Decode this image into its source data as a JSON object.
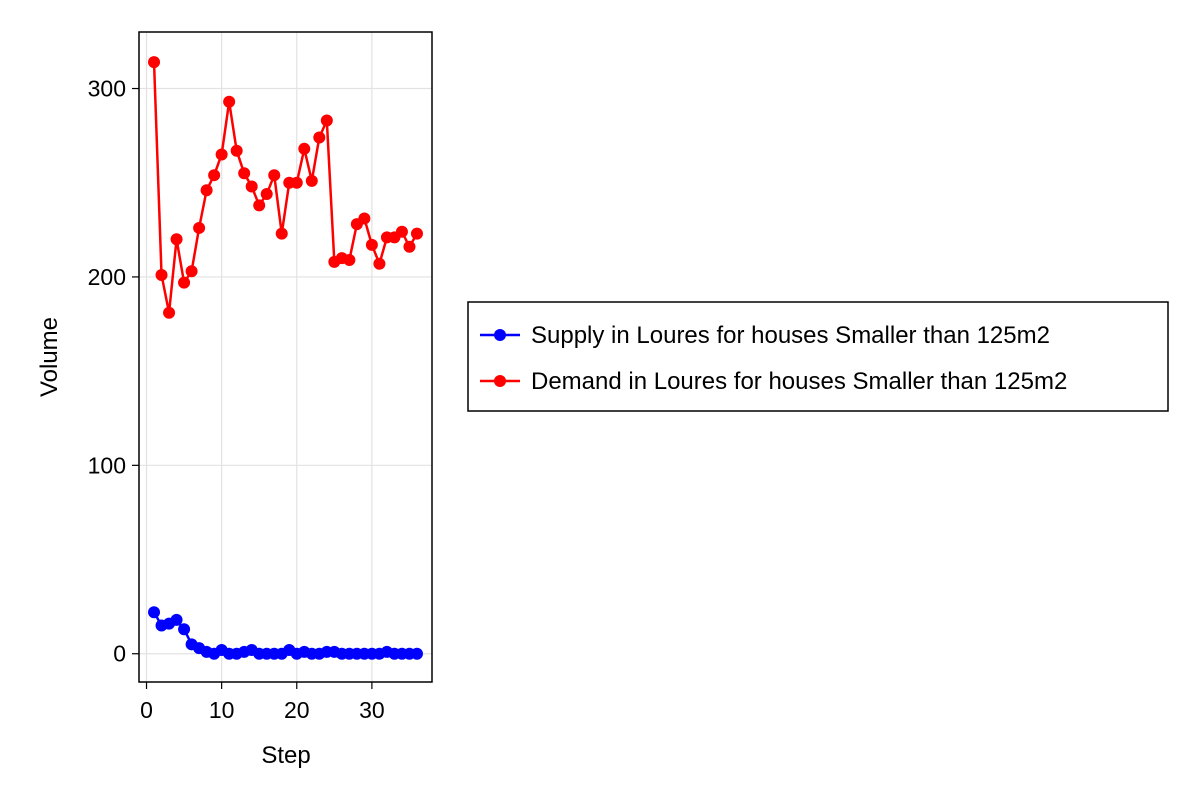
{
  "chart_data": {
    "type": "line",
    "xlabel": "Step",
    "ylabel": "Volume",
    "xlim": [
      -1,
      38
    ],
    "ylim": [
      -15,
      330
    ],
    "xticks": [
      0,
      10,
      20,
      30
    ],
    "yticks": [
      0,
      100,
      200,
      300
    ],
    "grid": true,
    "legend_position": "right",
    "x": [
      1,
      2,
      3,
      4,
      5,
      6,
      7,
      8,
      9,
      10,
      11,
      12,
      13,
      14,
      15,
      16,
      17,
      18,
      19,
      20,
      21,
      22,
      23,
      24,
      25,
      26,
      27,
      28,
      29,
      30,
      31,
      32,
      33,
      34,
      35,
      36
    ],
    "series": [
      {
        "name": "Supply in Loures for houses Smaller than 125m2",
        "color": "#0000ff",
        "values": [
          22,
          15,
          16,
          18,
          13,
          5,
          3,
          1,
          0,
          2,
          0,
          0,
          1,
          2,
          0,
          0,
          0,
          0,
          2,
          0,
          1,
          0,
          0,
          1,
          1,
          0,
          0,
          0,
          0,
          0,
          0,
          1,
          0,
          0,
          0,
          0
        ]
      },
      {
        "name": "Demand in Loures for houses Smaller than 125m2",
        "color": "#ff0000",
        "values": [
          314,
          201,
          181,
          220,
          197,
          203,
          226,
          246,
          254,
          265,
          293,
          267,
          255,
          248,
          238,
          244,
          254,
          223,
          250,
          250,
          268,
          251,
          274,
          283,
          208,
          210,
          209,
          228,
          231,
          217,
          207,
          221,
          221,
          224,
          216,
          223
        ]
      }
    ]
  }
}
